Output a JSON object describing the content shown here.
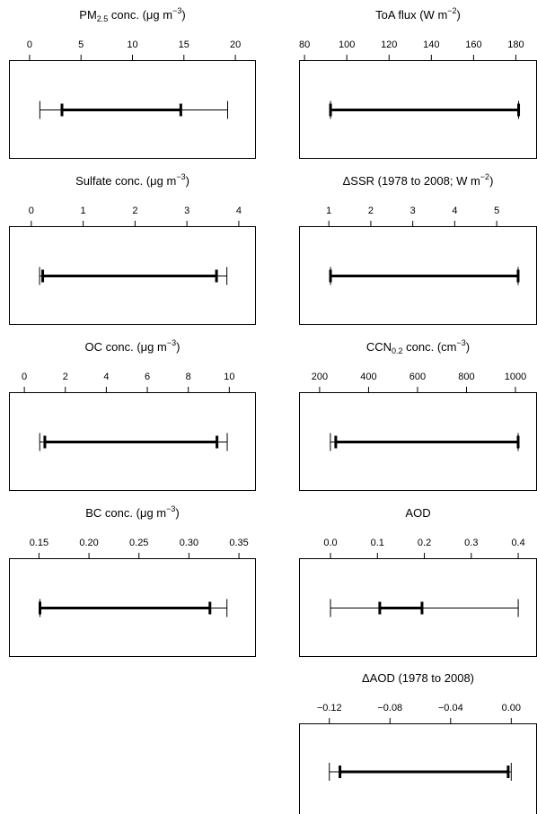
{
  "chart_data": [
    {
      "type": "interval",
      "title": [
        {
          "text": "PM"
        },
        {
          "text": "2.5",
          "script": "sub"
        },
        {
          "text": " conc. (μg m"
        },
        {
          "text": "−3",
          "script": "sup"
        },
        {
          "text": ")"
        }
      ],
      "xlim": [
        -2,
        22
      ],
      "xticks": [
        0,
        5,
        10,
        15,
        20
      ],
      "outer": [
        1.0,
        19.25
      ],
      "inner": [
        3.15,
        14.7
      ]
    },
    {
      "type": "interval",
      "title": [
        {
          "text": "Sulfate conc. (μg m"
        },
        {
          "text": "−3",
          "script": "sup"
        },
        {
          "text": ")"
        }
      ],
      "xlim": [
        -0.43,
        4.33
      ],
      "xticks": [
        0,
        1,
        2,
        3,
        4
      ],
      "outer": [
        0.16,
        3.77
      ],
      "inner": [
        0.22,
        3.57
      ]
    },
    {
      "type": "interval",
      "title": [
        {
          "text": "OC conc. (μg m"
        },
        {
          "text": "−3",
          "script": "sup"
        },
        {
          "text": ")"
        }
      ],
      "xlim": [
        -0.75,
        11.3
      ],
      "xticks": [
        0,
        2,
        4,
        6,
        8,
        10
      ],
      "outer": [
        0.75,
        9.9
      ],
      "inner": [
        1.0,
        9.4
      ]
    },
    {
      "type": "interval",
      "title": [
        {
          "text": "BC conc. (μg m"
        },
        {
          "text": "−3",
          "script": "sup"
        },
        {
          "text": ")"
        }
      ],
      "xlim": [
        0.12,
        0.367
      ],
      "xticks": [
        0.15,
        {
          "value": 0.2,
          "label": "0.20"
        },
        0.25,
        {
          "value": 0.3,
          "label": "0.30"
        },
        0.35
      ],
      "outer": [
        0.151,
        0.338
      ],
      "inner": [
        0.151,
        0.321
      ]
    },
    {
      "type": "interval",
      "title": [
        {
          "text": "ToA flux (W m"
        },
        {
          "text": "−2",
          "script": "sup"
        },
        {
          "text": ")"
        }
      ],
      "xlim": [
        77.4,
        190
      ],
      "xticks": [
        80,
        100,
        120,
        140,
        160,
        180
      ],
      "outer": [
        92.3,
        181.3
      ],
      "inner": [
        92.3,
        181.3
      ]
    },
    {
      "type": "interval",
      "title": [
        {
          "text": "ΔSSR (1978 to 2008; W m"
        },
        {
          "text": "−2",
          "script": "sup"
        },
        {
          "text": ")"
        }
      ],
      "xlim": [
        0.29,
        5.96
      ],
      "xticks": [
        1,
        2,
        3,
        4,
        5
      ],
      "outer": [
        1.04,
        5.51
      ],
      "inner": [
        1.04,
        5.51
      ]
    },
    {
      "type": "interval",
      "title": [
        {
          "text": "CCN"
        },
        {
          "text": "0.2",
          "script": "sub"
        },
        {
          "text": " conc. (cm"
        },
        {
          "text": "−3",
          "script": "sup"
        },
        {
          "text": ")"
        }
      ],
      "xlim": [
        116,
        1088
      ],
      "xticks": [
        200,
        400,
        600,
        800,
        1000
      ],
      "outer": [
        244,
        1011
      ],
      "inner": [
        266,
        1011
      ]
    },
    {
      "type": "interval",
      "title": [
        {
          "text": "AOD"
        }
      ],
      "xlim": [
        -0.067,
        0.44
      ],
      "xticks": [
        {
          "value": 0,
          "label": "0.0"
        },
        0.1,
        0.2,
        0.3,
        0.4
      ],
      "outer": [
        0.0,
        0.4
      ],
      "inner": [
        0.105,
        0.195
      ]
    },
    {
      "type": "interval",
      "title": [
        {
          "text": "ΔAOD (1978 to 2008)"
        }
      ],
      "xlim": [
        -0.14,
        0.017
      ],
      "xticks": [
        {
          "value": -0.12,
          "label": "−0.12"
        },
        {
          "value": -0.08,
          "label": "−0.08"
        },
        {
          "value": -0.04,
          "label": "−0.04"
        },
        {
          "value": 0,
          "label": "0.00"
        }
      ],
      "outer": [
        -0.12,
        0.0
      ],
      "inner": [
        -0.113,
        -0.002
      ]
    }
  ]
}
